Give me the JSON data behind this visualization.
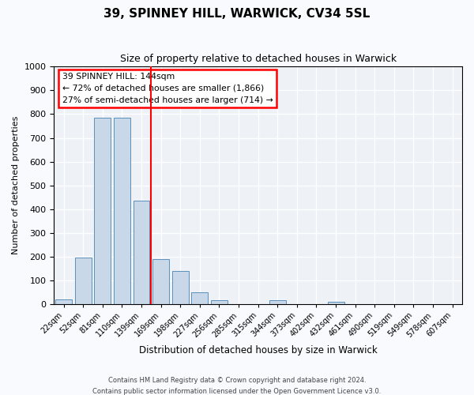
{
  "title": "39, SPINNEY HILL, WARWICK, CV34 5SL",
  "subtitle": "Size of property relative to detached houses in Warwick",
  "xlabel": "Distribution of detached houses by size in Warwick",
  "ylabel": "Number of detached properties",
  "bar_color": "#c8d8e8",
  "bar_edge_color": "#5a90bb",
  "bins": [
    "22sqm",
    "52sqm",
    "81sqm",
    "110sqm",
    "139sqm",
    "169sqm",
    "198sqm",
    "227sqm",
    "256sqm",
    "285sqm",
    "315sqm",
    "344sqm",
    "373sqm",
    "402sqm",
    "432sqm",
    "461sqm",
    "490sqm",
    "519sqm",
    "549sqm",
    "578sqm",
    "607sqm"
  ],
  "values": [
    20,
    195,
    785,
    785,
    435,
    190,
    140,
    50,
    15,
    0,
    0,
    15,
    0,
    0,
    10,
    0,
    0,
    0,
    0,
    0,
    0
  ],
  "vline_position": 4.5,
  "vline_color": "red",
  "annotation_title": "39 SPINNEY HILL: 144sqm",
  "annotation_line1": "← 72% of detached houses are smaller (1,866)",
  "annotation_line2": "27% of semi-detached houses are larger (714) →",
  "annotation_box_facecolor": "#ffffff",
  "annotation_box_edgecolor": "red",
  "ylim": [
    0,
    1000
  ],
  "yticks": [
    0,
    100,
    200,
    300,
    400,
    500,
    600,
    700,
    800,
    900,
    1000
  ],
  "fig_bg_color": "#f8fafd",
  "ax_bg_color": "#eef2f7",
  "footer_line1": "Contains HM Land Registry data © Crown copyright and database right 2024.",
  "footer_line2": "Contains public sector information licensed under the Open Government Licence v3.0."
}
